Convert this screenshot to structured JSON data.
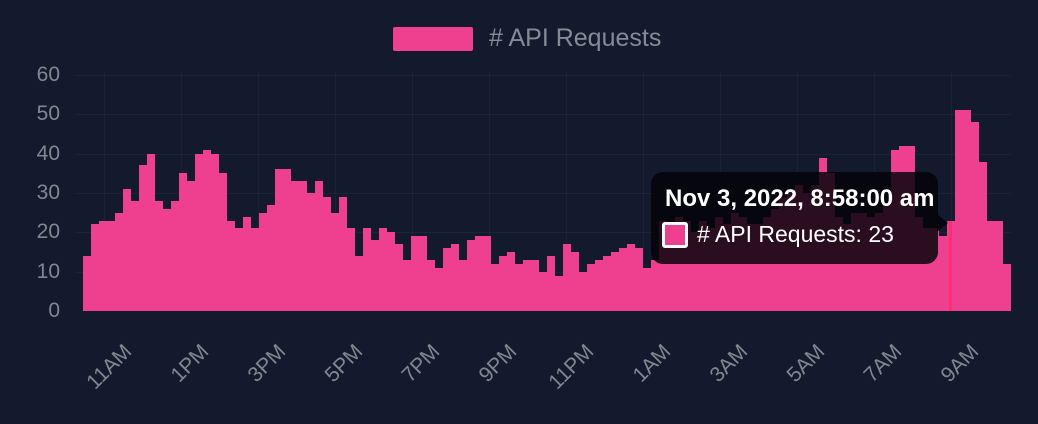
{
  "legend": {
    "label": "# API Requests",
    "swatch_color": "#EE408E"
  },
  "tooltip": {
    "title": "Nov 3, 2022, 8:58:00 am",
    "series_label": "# API Requests",
    "value": 23,
    "text": "# API Requests: 23"
  },
  "colors": {
    "background": "#131A2E",
    "bar": "#EE408E",
    "crosshair": "#FF2D78",
    "axis_text": "#82878F",
    "legend_text": "#858B94",
    "tooltip_background": "rgba(3,3,8,0.84)",
    "tooltip_text": "#FFFFFF"
  },
  "chart_data": {
    "type": "bar",
    "title": "",
    "xlabel": "",
    "ylabel": "",
    "legend_position": "top-center",
    "grid": "faint",
    "y_ticks": [
      0,
      10,
      20,
      30,
      40,
      50,
      60
    ],
    "ylim": [
      0,
      60
    ],
    "x_tick_labels": [
      "11AM",
      "1PM",
      "3PM",
      "5PM",
      "7PM",
      "9PM",
      "11PM",
      "1AM",
      "3AM",
      "5AM",
      "7AM",
      "9AM"
    ],
    "active_index": 108,
    "active_point": {
      "label": "Nov 3, 2022, 8:58:00 am",
      "series": "# API Requests",
      "value": 23
    },
    "series": [
      {
        "name": "# API Requests",
        "values": [
          14,
          22,
          23,
          23,
          25,
          31,
          28,
          37,
          40,
          28,
          26,
          28,
          35,
          33,
          40,
          41,
          40,
          35,
          23,
          21,
          24,
          21,
          25,
          27,
          36,
          36,
          33,
          33,
          30,
          33,
          29,
          25,
          29,
          21,
          14,
          21,
          18,
          21,
          20,
          17,
          13,
          19,
          19,
          13,
          11,
          16,
          17,
          13,
          18,
          19,
          19,
          12,
          14,
          15,
          12,
          13,
          13,
          10,
          14,
          9,
          17,
          15,
          10,
          12,
          13,
          14,
          15,
          16,
          17,
          16,
          11,
          13,
          23,
          21,
          24,
          23,
          20,
          23,
          21,
          24,
          22,
          25,
          24,
          22,
          22,
          24,
          26,
          29,
          31,
          32,
          30,
          32,
          39,
          35,
          24,
          22,
          25,
          25,
          24,
          25,
          27,
          41,
          42,
          42,
          24,
          21,
          21,
          19,
          23,
          51,
          51,
          48,
          38,
          23,
          23,
          12
        ]
      }
    ]
  }
}
